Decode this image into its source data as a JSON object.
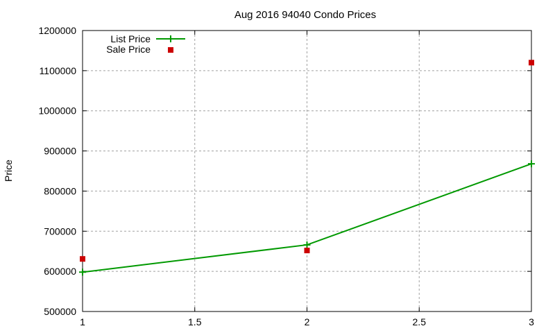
{
  "chart_data": {
    "type": "line",
    "title": "Aug 2016 94040 Condo Prices",
    "xlabel": "",
    "ylabel": "Price",
    "x": [
      1,
      2,
      3
    ],
    "xlim": [
      1,
      3
    ],
    "ylim": [
      500000,
      1200000
    ],
    "xticks": [
      "1",
      "1.5",
      "2",
      "2.5",
      "3"
    ],
    "yticks": [
      "500000",
      "600000",
      "700000",
      "800000",
      "900000",
      "1000000",
      "1100000",
      "1200000"
    ],
    "grid": true,
    "legend_position": "top-left",
    "series": [
      {
        "name": "List Price",
        "style": "line+cross",
        "color": "#009900",
        "values": [
          598000,
          666000,
          868000
        ]
      },
      {
        "name": "Sale Price",
        "style": "square-points",
        "color": "#cc0000",
        "values": [
          631000,
          652000,
          1120000
        ]
      }
    ]
  }
}
